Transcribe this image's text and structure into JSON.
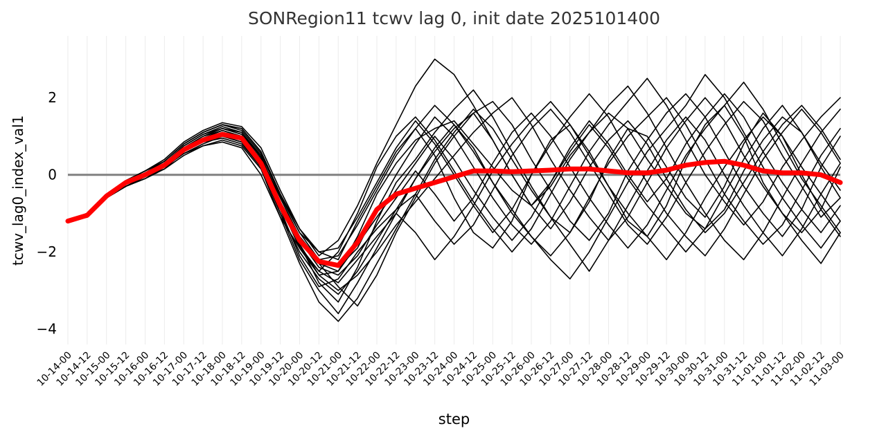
{
  "chart_data": {
    "type": "line",
    "title": "SONRegion11 tcwv lag 0, init date 2025101400",
    "xlabel": "step",
    "ylabel": "tcwv_lag0_index_val1",
    "categories": [
      "10-14-00",
      "10-14-12",
      "10-15-00",
      "10-15-12",
      "10-16-00",
      "10-16-12",
      "10-17-00",
      "10-17-12",
      "10-18-00",
      "10-18-12",
      "10-19-00",
      "10-19-12",
      "10-20-00",
      "10-20-12",
      "10-21-00",
      "10-21-12",
      "10-22-00",
      "10-22-12",
      "10-23-00",
      "10-23-12",
      "10-24-00",
      "10-24-12",
      "10-25-00",
      "10-25-12",
      "10-26-00",
      "10-26-12",
      "10-27-00",
      "10-27-12",
      "10-28-00",
      "10-28-12",
      "10-29-00",
      "10-29-12",
      "10-30-00",
      "10-30-12",
      "10-31-00",
      "10-31-12",
      "11-01-00",
      "11-01-12",
      "11-02-00",
      "11-02-12",
      "11-03-00"
    ],
    "yticks": [
      -4,
      -2,
      0,
      2
    ],
    "ylim": [
      -4.4,
      3.6
    ],
    "zero_line_color": "#808080",
    "grid": "vertical",
    "series": [
      {
        "role": "ensemble_mean",
        "color": "#ff0000",
        "values": [
          -1.2,
          -1.05,
          -0.55,
          -0.2,
          0.0,
          0.25,
          0.65,
          0.9,
          1.05,
          0.95,
          0.3,
          -0.8,
          -1.7,
          -2.25,
          -2.35,
          -1.75,
          -0.9,
          -0.5,
          -0.35,
          -0.2,
          -0.05,
          0.1,
          0.1,
          0.08,
          0.1,
          0.12,
          0.15,
          0.15,
          0.1,
          0.05,
          0.05,
          0.12,
          0.25,
          0.32,
          0.35,
          0.25,
          0.1,
          0.05,
          0.05,
          0.0,
          -0.2
        ]
      },
      {
        "role": "ensemble_member",
        "color": "#000000",
        "values": [
          -1.2,
          -1.05,
          -0.6,
          -0.3,
          -0.1,
          0.2,
          0.55,
          0.75,
          0.85,
          0.7,
          0.0,
          -1.1,
          -1.9,
          -2.6,
          -2.5,
          -1.6,
          -0.5,
          0.3,
          0.9,
          1.2,
          1.4,
          0.8,
          0.2,
          -0.4,
          -0.8,
          -0.3,
          0.5,
          1.1,
          1.6,
          1.2,
          0.4,
          -0.3,
          -1.0,
          -1.4,
          -0.9,
          0.1,
          0.9,
          1.5,
          1.1,
          0.3,
          -0.4
        ]
      },
      {
        "role": "ensemble_member",
        "color": "#000000",
        "values": [
          -1.2,
          -1.0,
          -0.5,
          -0.15,
          0.1,
          0.35,
          0.8,
          1.1,
          1.3,
          1.2,
          0.6,
          -0.5,
          -1.5,
          -2.0,
          -2.2,
          -1.2,
          -0.3,
          0.6,
          1.2,
          0.5,
          -0.6,
          -1.5,
          -1.9,
          -1.2,
          0.0,
          0.9,
          1.3,
          0.6,
          -0.3,
          -1.2,
          -1.6,
          -0.8,
          0.4,
          1.3,
          1.8,
          1.0,
          -0.2,
          -1.0,
          -1.5,
          -0.9,
          0.2
        ]
      },
      {
        "role": "ensemble_member",
        "color": "#000000",
        "values": [
          -1.2,
          -1.0,
          -0.55,
          -0.25,
          0.0,
          0.3,
          0.7,
          1.0,
          1.2,
          1.1,
          0.5,
          -0.7,
          -1.8,
          -2.8,
          -3.3,
          -2.4,
          -1.2,
          -0.2,
          0.4,
          1.1,
          1.7,
          2.2,
          1.5,
          0.6,
          -0.3,
          -1.1,
          -1.5,
          -0.7,
          0.4,
          1.2,
          1.0,
          0.2,
          -0.6,
          -1.1,
          -0.3,
          0.8,
          1.6,
          1.0,
          0.0,
          -0.9,
          -1.6
        ]
      },
      {
        "role": "ensemble_member",
        "color": "#000000",
        "values": [
          -1.2,
          -1.1,
          -0.6,
          -0.3,
          -0.05,
          0.15,
          0.6,
          0.85,
          0.95,
          0.8,
          0.2,
          -0.9,
          -2.1,
          -2.9,
          -2.7,
          -2.0,
          -1.4,
          -0.9,
          -0.5,
          -1.2,
          -1.8,
          -1.3,
          -0.4,
          0.5,
          1.2,
          1.7,
          1.1,
          0.3,
          -0.5,
          -1.3,
          -1.8,
          -1.1,
          -0.2,
          0.6,
          1.3,
          1.9,
          1.4,
          0.5,
          -0.3,
          -1.1,
          -0.6
        ]
      },
      {
        "role": "ensemble_member",
        "color": "#000000",
        "values": [
          -1.2,
          -1.05,
          -0.5,
          -0.2,
          0.05,
          0.3,
          0.75,
          1.05,
          1.25,
          1.1,
          0.45,
          -0.6,
          -1.6,
          -2.3,
          -2.9,
          -3.4,
          -2.6,
          -1.5,
          -0.6,
          0.3,
          1.0,
          1.6,
          1.9,
          1.3,
          0.4,
          -0.4,
          -1.2,
          -1.7,
          -1.0,
          0.1,
          0.9,
          1.6,
          2.1,
          1.5,
          0.6,
          -0.3,
          -1.0,
          -1.6,
          -0.9,
          0.2,
          1.0
        ]
      },
      {
        "role": "ensemble_member",
        "color": "#000000",
        "values": [
          -1.2,
          -1.0,
          -0.55,
          -0.2,
          0.0,
          0.25,
          0.6,
          0.9,
          1.1,
          1.0,
          0.4,
          -0.8,
          -1.9,
          -2.5,
          -2.0,
          -1.0,
          0.2,
          1.0,
          1.5,
          0.9,
          0.1,
          -0.7,
          -1.4,
          -2.0,
          -1.4,
          -0.5,
          0.4,
          1.1,
          1.8,
          2.3,
          1.6,
          0.7,
          -0.2,
          -1.0,
          -1.7,
          -2.2,
          -1.5,
          -0.6,
          0.3,
          1.1,
          1.7
        ]
      },
      {
        "role": "ensemble_member",
        "color": "#000000",
        "values": [
          -1.2,
          -1.05,
          -0.6,
          -0.25,
          -0.05,
          0.2,
          0.55,
          0.8,
          1.0,
          0.85,
          0.25,
          -1.0,
          -2.2,
          -3.0,
          -3.6,
          -2.8,
          -1.9,
          -1.0,
          -0.1,
          0.7,
          1.3,
          0.7,
          -0.2,
          -0.9,
          -1.6,
          -2.1,
          -1.5,
          -0.6,
          0.3,
          1.0,
          1.5,
          2.0,
          1.3,
          0.4,
          -0.5,
          -1.2,
          -1.8,
          -1.3,
          -0.4,
          0.5,
          1.2
        ]
      },
      {
        "role": "ensemble_member",
        "color": "#000000",
        "values": [
          -1.2,
          -1.0,
          -0.5,
          -0.15,
          0.1,
          0.4,
          0.85,
          1.15,
          1.35,
          1.25,
          0.7,
          -0.4,
          -1.4,
          -2.1,
          -1.7,
          -0.8,
          0.3,
          1.3,
          2.3,
          3.0,
          2.6,
          1.8,
          0.9,
          0.0,
          -0.8,
          -1.4,
          -0.7,
          0.2,
          0.9,
          1.4,
          0.8,
          -0.1,
          -0.9,
          -1.5,
          -1.0,
          -0.2,
          0.6,
          1.3,
          1.8,
          1.2,
          0.4
        ]
      },
      {
        "role": "ensemble_member",
        "color": "#000000",
        "values": [
          -1.2,
          -1.05,
          -0.55,
          -0.25,
          0.0,
          0.3,
          0.7,
          0.95,
          1.15,
          1.0,
          0.35,
          -0.75,
          -1.7,
          -2.4,
          -2.6,
          -2.1,
          -1.3,
          -0.6,
          0.1,
          -0.5,
          -1.2,
          -0.6,
          0.3,
          1.1,
          1.6,
          1.0,
          0.2,
          -0.6,
          -1.3,
          -1.9,
          -1.3,
          -0.4,
          0.5,
          1.2,
          1.8,
          2.4,
          1.7,
          0.8,
          -0.1,
          -0.8,
          -1.5
        ]
      },
      {
        "role": "ensemble_member",
        "color": "#000000",
        "values": [
          -1.2,
          -1.0,
          -0.6,
          -0.3,
          -0.1,
          0.15,
          0.5,
          0.75,
          0.9,
          0.75,
          0.15,
          -1.1,
          -2.3,
          -3.3,
          -3.8,
          -3.2,
          -2.3,
          -1.4,
          -0.5,
          0.4,
          1.1,
          1.7,
          1.2,
          0.4,
          -0.4,
          -1.1,
          -1.8,
          -2.5,
          -1.7,
          -0.8,
          0.1,
          0.9,
          1.5,
          0.9,
          0.0,
          -0.8,
          -1.5,
          -2.1,
          -1.4,
          -0.5,
          0.3
        ]
      },
      {
        "role": "ensemble_member",
        "color": "#000000",
        "values": [
          -1.2,
          -1.1,
          -0.55,
          -0.2,
          0.05,
          0.35,
          0.8,
          1.1,
          1.3,
          1.15,
          0.55,
          -0.55,
          -1.5,
          -2.2,
          -2.4,
          -1.9,
          -0.9,
          0.0,
          0.8,
          1.5,
          1.0,
          0.2,
          -0.6,
          -1.3,
          -1.8,
          -1.2,
          -0.3,
          0.6,
          1.3,
          1.9,
          2.5,
          1.8,
          0.9,
          0.0,
          -0.7,
          -1.3,
          -0.7,
          0.2,
          0.9,
          1.5,
          2.0
        ]
      },
      {
        "role": "ensemble_member",
        "color": "#000000",
        "values": [
          -1.2,
          -1.05,
          -0.5,
          -0.2,
          0.0,
          0.25,
          0.65,
          0.9,
          1.05,
          0.9,
          0.3,
          -0.85,
          -1.85,
          -2.5,
          -2.8,
          -2.2,
          -1.6,
          -1.0,
          -1.5,
          -2.2,
          -1.6,
          -0.8,
          0.1,
          0.8,
          1.4,
          1.9,
          1.3,
          0.5,
          -0.3,
          -1.0,
          -1.6,
          -2.2,
          -1.5,
          -0.6,
          0.2,
          0.9,
          1.5,
          1.0,
          0.2,
          -0.5,
          -1.2
        ]
      },
      {
        "role": "ensemble_member",
        "color": "#000000",
        "values": [
          -1.2,
          -1.0,
          -0.55,
          -0.25,
          0.0,
          0.3,
          0.75,
          1.05,
          1.2,
          1.05,
          0.45,
          -0.7,
          -1.6,
          -2.2,
          -2.1,
          -1.3,
          -0.4,
          0.5,
          1.2,
          1.8,
          1.3,
          0.6,
          -0.2,
          -1.0,
          -1.6,
          -2.2,
          -2.7,
          -2.0,
          -1.1,
          -0.2,
          0.6,
          1.2,
          1.8,
          2.6,
          2.0,
          1.1,
          0.2,
          -0.6,
          -1.3,
          -1.9,
          -1.2
        ]
      },
      {
        "role": "ensemble_member",
        "color": "#000000",
        "values": [
          -1.2,
          -1.05,
          -0.6,
          -0.3,
          -0.05,
          0.2,
          0.6,
          0.85,
          1.0,
          0.85,
          0.2,
          -1.0,
          -2.0,
          -2.7,
          -3.1,
          -2.5,
          -1.7,
          -0.9,
          -0.1,
          0.6,
          1.2,
          1.6,
          0.9,
          0.0,
          -0.8,
          -0.2,
          0.6,
          1.3,
          0.7,
          -0.1,
          -0.8,
          -1.4,
          -2.0,
          -1.4,
          -0.5,
          0.4,
          1.2,
          1.8,
          1.1,
          0.2,
          -0.6
        ]
      },
      {
        "role": "ensemble_member",
        "color": "#000000",
        "values": [
          -1.2,
          -1.0,
          -0.5,
          -0.15,
          0.1,
          0.35,
          0.8,
          1.1,
          1.3,
          1.2,
          0.6,
          -0.5,
          -1.4,
          -2.0,
          -1.9,
          -1.1,
          -0.2,
          0.7,
          1.4,
          0.8,
          0.0,
          -0.8,
          -1.5,
          -0.9,
          0.0,
          0.8,
          1.5,
          2.1,
          1.5,
          0.6,
          -0.2,
          -1.0,
          -1.6,
          -2.1,
          -1.4,
          -0.5,
          0.4,
          1.1,
          1.7,
          1.1,
          0.3
        ]
      },
      {
        "role": "ensemble_member",
        "color": "#000000",
        "values": [
          -1.2,
          -1.1,
          -0.55,
          -0.25,
          0.0,
          0.25,
          0.65,
          0.95,
          1.1,
          0.95,
          0.35,
          -0.8,
          -1.8,
          -2.6,
          -3.0,
          -2.6,
          -2.0,
          -1.3,
          -0.7,
          -0.1,
          0.5,
          1.1,
          1.6,
          2.0,
          1.3,
          0.4,
          -0.4,
          -1.1,
          -1.7,
          -1.1,
          -0.2,
          0.7,
          1.4,
          2.0,
          1.4,
          0.5,
          -0.3,
          -1.0,
          -1.7,
          -2.3,
          -1.5
        ]
      },
      {
        "role": "ensemble_member",
        "color": "#000000",
        "values": [
          -1.2,
          -1.0,
          -0.55,
          -0.2,
          0.05,
          0.3,
          0.7,
          1.0,
          1.15,
          1.0,
          0.4,
          -0.7,
          -1.7,
          -2.3,
          -2.5,
          -1.8,
          -1.1,
          -0.4,
          0.3,
          1.0,
          0.4,
          -0.4,
          -1.1,
          -1.7,
          -1.1,
          -0.2,
          0.7,
          1.4,
          0.8,
          0.0,
          -0.7,
          -0.1,
          0.8,
          1.5,
          2.1,
          1.5,
          0.6,
          -0.2,
          -0.9,
          -1.5,
          -0.8
        ]
      }
    ]
  }
}
